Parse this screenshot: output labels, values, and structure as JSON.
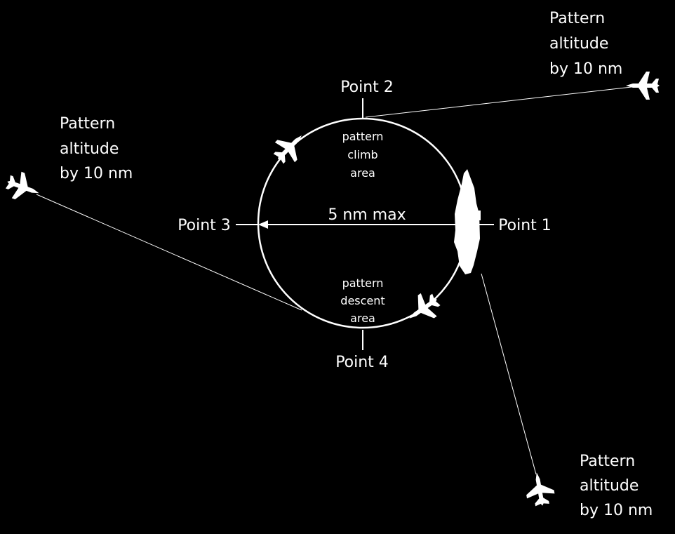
{
  "colors": {
    "background": "#000000",
    "foreground": "#ffffff"
  },
  "labels": {
    "point1": "Point 1",
    "point2": "Point 2",
    "point3": "Point 3",
    "point4": "Point 4",
    "radius": "5 nm max"
  },
  "areas": {
    "climb": [
      "pattern",
      "climb",
      "area"
    ],
    "descent": [
      "pattern",
      "descent",
      "area"
    ]
  },
  "notes": {
    "top_right": [
      "Pattern",
      "altitude",
      "by 10 nm"
    ],
    "left": [
      "Pattern",
      "altitude",
      "by 10 nm"
    ],
    "bottom_right": [
      "Pattern",
      "altitude",
      "by 10 nm"
    ]
  },
  "icons": {
    "ship": "aircraft-carrier-icon",
    "jet": "fighter-jet-icon"
  }
}
